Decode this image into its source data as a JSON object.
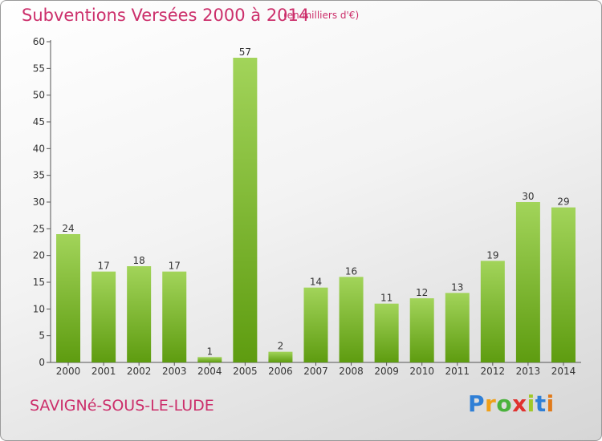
{
  "header": {
    "title": "Subventions Versées 2000 à 2014",
    "subtitle": "(en milliers d'€)"
  },
  "footer": {
    "commune": "SAVIGNé-SOUS-LE-LUDE",
    "logo": "Proxiti"
  },
  "colors": {
    "title": "#cc2f6b",
    "bar_light": "#a2d45a",
    "bar_dark": "#5e9c10"
  },
  "chart_data": {
    "type": "bar",
    "title": "Subventions Versées 2000 à 2014",
    "subtitle": "(en milliers d'€)",
    "categories": [
      "2000",
      "2001",
      "2002",
      "2003",
      "2004",
      "2005",
      "2006",
      "2007",
      "2008",
      "2009",
      "2010",
      "2011",
      "2012",
      "2013",
      "2014"
    ],
    "values": [
      24,
      17,
      18,
      17,
      1,
      57,
      2,
      14,
      16,
      11,
      12,
      13,
      19,
      30,
      29
    ],
    "ylim": [
      0,
      60
    ],
    "yticks": [
      0,
      5,
      10,
      15,
      20,
      25,
      30,
      35,
      40,
      45,
      50,
      55,
      60
    ],
    "grid": false,
    "legend": "none"
  }
}
